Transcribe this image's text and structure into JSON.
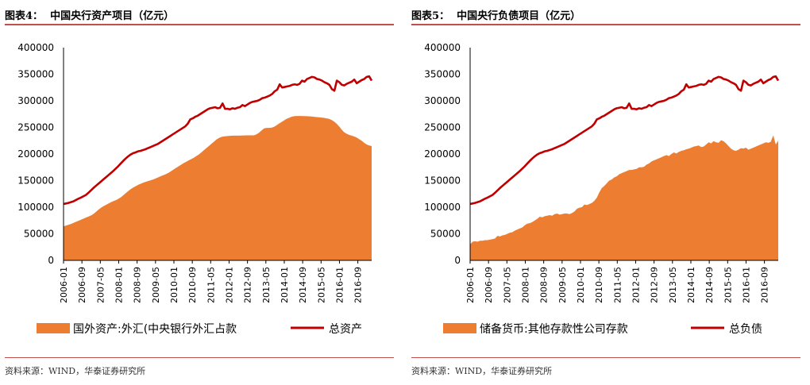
{
  "charts": [
    {
      "title": "图表4：  中国央行资产项目（亿元）",
      "source": "资料来源：WIND，华泰证券研究所",
      "colors": {
        "area": "#ed7d31",
        "line": "#c00000"
      },
      "chart_data": {
        "type": "area",
        "title": "中国央行资产项目（亿元）",
        "ylim": [
          0,
          400000
        ],
        "yticks": [
          "400000",
          "350000",
          "300000",
          "250000",
          "200000",
          "150000",
          "100000",
          "50000",
          "0"
        ],
        "xticks": [
          "2006-01",
          "2006-09",
          "2007-05",
          "2008-01",
          "2008-09",
          "2009-05",
          "2010-01",
          "2010-09",
          "2011-05",
          "2012-01",
          "2012-09",
          "2013-05",
          "2014-01",
          "2014-09",
          "2015-05",
          "2016-01",
          "2016-09"
        ],
        "x_start": "2006-01",
        "x_end": "2017-03",
        "legend_position": "bottom",
        "series": [
          {
            "name": "国外资产:外汇(中央银行外汇占款",
            "type": "area",
            "values": [
              64000,
              65500,
              67000,
              68500,
              70500,
              72500,
              74500,
              76500,
              78500,
              80500,
              82500,
              84500,
              87500,
              91500,
              95500,
              99000,
              102000,
              104500,
              107000,
              109500,
              111500,
              113500,
              116000,
              119000,
              123000,
              127000,
              131000,
              134500,
              137500,
              140000,
              142500,
              144500,
              146500,
              148000,
              149500,
              151000,
              152500,
              154500,
              156500,
              158500,
              160500,
              162500,
              165000,
              168000,
              171000,
              174000,
              177000,
              180000,
              183000,
              185500,
              188000,
              190500,
              193000,
              196000,
              199000,
              203000,
              207000,
              211000,
              215000,
              219000,
              223000,
              227000,
              230000,
              232000,
              233000,
              233500,
              234000,
              234300,
              234500,
              234500,
              234600,
              234700,
              234800,
              235000,
              235000,
              235000,
              235000,
              237000,
              240000,
              244000,
              248000,
              249000,
              249000,
              249500,
              251000,
              254000,
              257000,
              260000,
              263000,
              266000,
              268000,
              270000,
              271000,
              271500,
              271500,
              271400,
              271200,
              271000,
              270800,
              270500,
              270000,
              269500,
              269000,
              268500,
              268000,
              267000,
              266000,
              264000,
              261000,
              257000,
              252000,
              246000,
              241000,
              238000,
              236000,
              234500,
              233000,
              231000,
              228000,
              225000,
              221000,
              218000,
              216000,
              215000
            ]
          },
          {
            "name": "总资产",
            "type": "line",
            "values": [
              106000,
              107000,
              108000,
              109500,
              111000,
              113500,
              116000,
              118000,
              120500,
              123000,
              127000,
              131500,
              136000,
              140000,
              144000,
              148000,
              152000,
              156000,
              160000,
              164000,
              168000,
              172500,
              177000,
              182000,
              187000,
              191500,
              195500,
              199000,
              201500,
              203000,
              205000,
              206000,
              207500,
              209000,
              211000,
              213000,
              215000,
              217000,
              219000,
              222000,
              225000,
              228000,
              231000,
              234000,
              237000,
              240000,
              243000,
              246000,
              249000,
              252000,
              257000,
              265000,
              267000,
              270000,
              272000,
              275000,
              278000,
              281000,
              284000,
              286000,
              287000,
              288000,
              286000,
              287000,
              295000,
              285000,
              285000,
              284000,
              286000,
              285000,
              287000,
              288000,
              292000,
              290000,
              293000,
              296000,
              298000,
              299000,
              300000,
              302000,
              305000,
              306000,
              308000,
              310000,
              313000,
              318000,
              321000,
              331000,
              325000,
              326000,
              327000,
              328000,
              330000,
              331000,
              330000,
              332000,
              338000,
              336000,
              341000,
              343000,
              345000,
              344000,
              341000,
              340000,
              338000,
              335000,
              333000,
              330000,
              322000,
              319000,
              338000,
              335000,
              330000,
              329000,
              332000,
              334000,
              336000,
              340000,
              333000,
              336000,
              339000,
              341000,
              345000,
              346000,
              338000
            ]
          }
        ]
      }
    },
    {
      "title": "图表5：  中国央行负债项目（亿元）",
      "source": "资料来源：WIND，华泰证券研究所",
      "colors": {
        "area": "#ed7d31",
        "line": "#c00000"
      },
      "chart_data": {
        "type": "area",
        "title": "中国央行负债项目（亿元）",
        "ylim": [
          0,
          400000
        ],
        "yticks": [
          "400000",
          "350000",
          "300000",
          "250000",
          "200000",
          "150000",
          "100000",
          "50000",
          "0"
        ],
        "xticks": [
          "2006-01",
          "2006-09",
          "2007-05",
          "2008-01",
          "2008-09",
          "2009-05",
          "2010-01",
          "2010-09",
          "2011-05",
          "2012-01",
          "2012-09",
          "2013-05",
          "2014-01",
          "2014-09",
          "2015-05",
          "2016-01",
          "2016-09"
        ],
        "x_start": "2006-01",
        "x_end": "2017-03",
        "legend_position": "bottom",
        "series": [
          {
            "name": "储备货币:其他存款性公司存款",
            "type": "area",
            "values": [
              30000,
              35000,
              36000,
              35000,
              37000,
              37000,
              38000,
              38000,
              39000,
              40000,
              41000,
              46000,
              45000,
              47000,
              48000,
              50000,
              52000,
              53000,
              56000,
              58000,
              60000,
              62000,
              66000,
              69000,
              70000,
              72000,
              75000,
              78000,
              82000,
              81000,
              83000,
              84000,
              85000,
              84000,
              87000,
              88000,
              86000,
              87000,
              88000,
              88000,
              87000,
              89000,
              92000,
              97000,
              99000,
              100000,
              105000,
              104000,
              106000,
              108000,
              112000,
              118000,
              128000,
              136000,
              140000,
              145000,
              150000,
              152000,
              156000,
              158000,
              162000,
              164000,
              166000,
              168000,
              170000,
              170000,
              171000,
              172000,
              175000,
              175000,
              176000,
              180000,
              182000,
              186000,
              188000,
              190000,
              192000,
              194000,
              196000,
              198000,
              196000,
              200000,
              203000,
              201000,
              204000,
              206000,
              207000,
              209000,
              210000,
              212000,
              214000,
              215000,
              216000,
              213000,
              214000,
              218000,
              222000,
              220000,
              224000,
              222000,
              221000,
              226000,
              224000,
              220000,
              215000,
              210000,
              207000,
              206000,
              208000,
              211000,
              210000,
              212000,
              208000,
              210000,
              212000,
              214000,
              216000,
              218000,
              220000,
              222000,
              221000,
              223000,
              235000,
              218000,
              225000
            ]
          },
          {
            "name": "总负债",
            "type": "line",
            "values": [
              106000,
              107000,
              108000,
              109500,
              111000,
              113500,
              116000,
              118000,
              120500,
              123000,
              127000,
              131500,
              136000,
              140000,
              144000,
              148000,
              152000,
              156000,
              160000,
              164000,
              168000,
              172500,
              177000,
              182000,
              187000,
              191500,
              195500,
              199000,
              201500,
              203000,
              205000,
              206000,
              207500,
              209000,
              211000,
              213000,
              215000,
              217000,
              219000,
              222000,
              225000,
              228000,
              231000,
              234000,
              237000,
              240000,
              243000,
              246000,
              249000,
              252000,
              257000,
              265000,
              267000,
              270000,
              272000,
              275000,
              278000,
              281000,
              284000,
              286000,
              287000,
              288000,
              286000,
              287000,
              295000,
              285000,
              285000,
              284000,
              286000,
              285000,
              287000,
              288000,
              292000,
              290000,
              293000,
              296000,
              298000,
              299000,
              300000,
              302000,
              305000,
              306000,
              308000,
              310000,
              313000,
              318000,
              321000,
              331000,
              325000,
              326000,
              327000,
              328000,
              330000,
              331000,
              330000,
              332000,
              338000,
              336000,
              341000,
              343000,
              345000,
              344000,
              341000,
              340000,
              338000,
              335000,
              333000,
              330000,
              322000,
              319000,
              338000,
              335000,
              330000,
              329000,
              332000,
              334000,
              336000,
              340000,
              333000,
              336000,
              339000,
              341000,
              345000,
              346000,
              338000
            ]
          }
        ]
      }
    }
  ]
}
